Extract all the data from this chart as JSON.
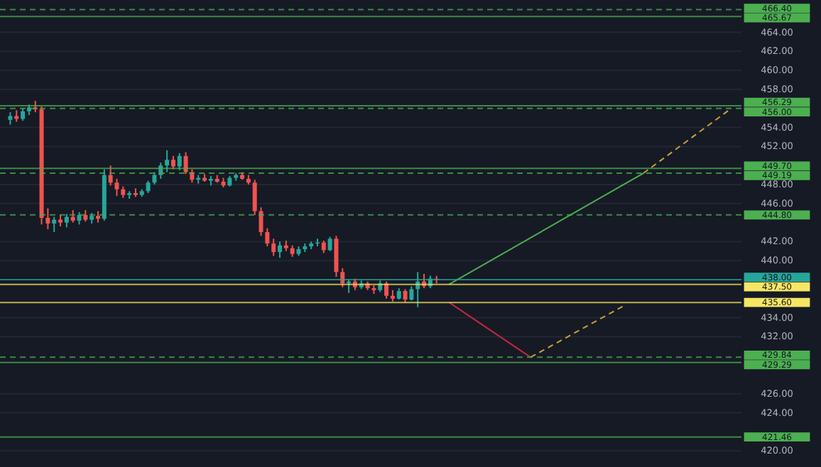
{
  "chart_data": {
    "type": "candlestick",
    "categories": [
      null,
      null,
      null,
      null,
      null,
      null,
      null,
      null,
      null,
      null,
      null,
      null,
      null,
      null,
      null,
      null,
      null,
      null,
      null,
      null,
      null,
      null,
      null,
      null,
      null,
      null,
      null,
      null,
      null,
      null,
      null,
      null,
      null,
      null,
      null,
      null,
      null,
      null,
      null,
      null,
      null,
      null,
      null,
      null,
      null,
      null,
      null,
      null,
      null,
      null,
      null,
      null,
      null,
      null,
      null,
      null,
      null,
      null,
      null,
      null,
      null,
      null,
      null,
      null,
      null,
      null,
      null,
      null,
      null,
      null,
      null,
      null,
      null,
      null,
      null,
      null,
      null,
      null,
      null,
      null,
      null,
      null,
      null,
      null,
      null,
      null,
      null,
      null,
      null,
      null,
      null,
      null,
      null,
      null,
      null,
      null,
      null,
      null,
      null,
      null,
      null,
      null,
      null,
      null,
      null,
      null,
      null,
      null,
      null,
      null,
      null,
      null,
      null,
      null,
      null,
      null
    ],
    "ohlc": [
      [
        454.8,
        455.6,
        454.3,
        455.2
      ],
      [
        455.2,
        455.8,
        454.6,
        454.9
      ],
      [
        454.9,
        456.0,
        454.7,
        455.7
      ],
      [
        455.7,
        456.4,
        455.3,
        456.1
      ],
      [
        456.1,
        456.8,
        455.6,
        455.9
      ],
      [
        455.9,
        456.2,
        443.8,
        444.5
      ],
      [
        444.5,
        445.5,
        443.3,
        443.9
      ],
      [
        443.9,
        444.6,
        443.0,
        444.3
      ],
      [
        444.3,
        444.8,
        443.6,
        444.0
      ],
      [
        444.0,
        444.9,
        443.5,
        444.6
      ],
      [
        444.6,
        445.3,
        444.0,
        444.2
      ],
      [
        444.2,
        445.1,
        443.8,
        444.8
      ],
      [
        444.8,
        445.3,
        444.1,
        444.3
      ],
      [
        444.3,
        445.0,
        443.9,
        444.7
      ],
      [
        444.7,
        445.2,
        444.0,
        444.4
      ],
      [
        444.4,
        449.6,
        444.2,
        449.0
      ],
      [
        449.0,
        450.0,
        447.9,
        448.2
      ],
      [
        448.2,
        448.6,
        446.8,
        447.5
      ],
      [
        447.5,
        447.8,
        446.6,
        446.9
      ],
      [
        446.9,
        447.3,
        446.5,
        447.1
      ],
      [
        447.1,
        447.6,
        446.7,
        446.9
      ],
      [
        446.9,
        447.5,
        446.7,
        447.3
      ],
      [
        447.3,
        448.4,
        447.1,
        448.2
      ],
      [
        448.2,
        449.3,
        448.0,
        449.0
      ],
      [
        449.0,
        450.3,
        448.6,
        450.0
      ],
      [
        450.0,
        451.6,
        449.3,
        450.6
      ],
      [
        450.6,
        451.0,
        449.6,
        449.9
      ],
      [
        449.9,
        451.3,
        449.5,
        451.0
      ],
      [
        451.0,
        451.4,
        449.1,
        449.3
      ],
      [
        449.3,
        449.6,
        448.2,
        448.5
      ],
      [
        448.5,
        449.0,
        448.1,
        448.7
      ],
      [
        448.7,
        449.1,
        448.3,
        448.4
      ],
      [
        448.4,
        448.9,
        447.9,
        448.6
      ],
      [
        448.6,
        449.0,
        448.2,
        448.3
      ],
      [
        448.3,
        448.7,
        447.7,
        447.9
      ],
      [
        447.9,
        448.9,
        447.8,
        448.7
      ],
      [
        448.7,
        449.2,
        448.4,
        449.0
      ],
      [
        449.0,
        449.3,
        448.5,
        448.6
      ],
      [
        448.6,
        449.0,
        448.0,
        448.2
      ],
      [
        448.2,
        448.5,
        444.8,
        445.2
      ],
      [
        445.2,
        445.6,
        442.6,
        443.0
      ],
      [
        443.0,
        443.4,
        441.5,
        441.8
      ],
      [
        441.8,
        442.3,
        440.5,
        440.9
      ],
      [
        440.9,
        442.0,
        440.3,
        441.6
      ],
      [
        441.6,
        442.1,
        441.0,
        441.3
      ],
      [
        441.3,
        441.6,
        440.4,
        440.7
      ],
      [
        440.7,
        441.5,
        440.5,
        441.2
      ],
      [
        441.2,
        441.8,
        440.9,
        441.5
      ],
      [
        441.5,
        442.0,
        441.2,
        441.8
      ],
      [
        441.8,
        442.3,
        441.5,
        441.9
      ],
      [
        441.9,
        442.1,
        440.8,
        441.1
      ],
      [
        441.1,
        442.5,
        441.0,
        442.3
      ],
      [
        442.3,
        442.6,
        438.3,
        438.8
      ],
      [
        438.8,
        439.2,
        437.2,
        437.6
      ],
      [
        437.6,
        438.0,
        436.6,
        437.8
      ],
      [
        437.8,
        438.1,
        436.9,
        437.2
      ],
      [
        437.2,
        437.9,
        437.0,
        437.6
      ],
      [
        437.6,
        437.8,
        436.9,
        437.1
      ],
      [
        437.1,
        437.4,
        436.5,
        436.9
      ],
      [
        436.9,
        437.9,
        436.7,
        437.6
      ],
      [
        437.6,
        437.8,
        436.0,
        436.3
      ],
      [
        436.3,
        436.9,
        435.7,
        436.0
      ],
      [
        436.0,
        437.1,
        435.9,
        436.8
      ],
      [
        436.8,
        437.0,
        435.6,
        435.9
      ],
      [
        435.9,
        437.3,
        435.8,
        437.0
      ],
      [
        437.0,
        438.8,
        435.1,
        437.8
      ],
      [
        437.8,
        438.6,
        437.1,
        437.3
      ],
      [
        437.3,
        438.4,
        437.1,
        438.1
      ],
      [
        438.1,
        438.4,
        437.6,
        438.0
      ],
      null,
      null,
      null,
      null,
      null,
      null,
      null,
      null,
      null,
      null,
      null,
      null,
      null,
      null,
      null,
      null,
      null,
      null,
      null,
      null,
      null,
      null,
      null,
      null,
      null,
      null,
      null,
      null,
      null,
      null,
      null,
      null,
      null,
      null,
      null,
      null,
      null,
      null,
      null,
      null,
      null,
      null,
      null,
      null,
      null,
      null,
      null
    ],
    "series": [
      {
        "type": "line",
        "color": "#4caf50",
        "line_style": "solid",
        "values": [
          null,
          null,
          null,
          null,
          null,
          null,
          null,
          null,
          null,
          null,
          null,
          null,
          null,
          null,
          null,
          null,
          null,
          null,
          null,
          null,
          null,
          null,
          null,
          null,
          null,
          null,
          null,
          null,
          null,
          null,
          null,
          null,
          null,
          null,
          null,
          null,
          null,
          null,
          null,
          null,
          null,
          null,
          null,
          null,
          null,
          null,
          null,
          null,
          null,
          null,
          null,
          null,
          null,
          null,
          null,
          null,
          null,
          null,
          null,
          null,
          null,
          null,
          null,
          null,
          null,
          null,
          null,
          null,
          null,
          null,
          437.5,
          null,
          null,
          null,
          null,
          null,
          null,
          null,
          null,
          null,
          null,
          null,
          null,
          null,
          null,
          null,
          null,
          null,
          null,
          null,
          null,
          null,
          null,
          null,
          null,
          null,
          null,
          null,
          null,
          null,
          null,
          449.19,
          null,
          null,
          null,
          null,
          null,
          null,
          null,
          null,
          null,
          null,
          null,
          null,
          null,
          null
        ]
      },
      {
        "type": "line",
        "color": "#c8a13a",
        "line_style": "dashed",
        "values": [
          null,
          null,
          null,
          null,
          null,
          null,
          null,
          null,
          null,
          null,
          null,
          null,
          null,
          null,
          null,
          null,
          null,
          null,
          null,
          null,
          null,
          null,
          null,
          null,
          null,
          null,
          null,
          null,
          null,
          null,
          null,
          null,
          null,
          null,
          null,
          null,
          null,
          null,
          null,
          null,
          null,
          null,
          null,
          null,
          null,
          null,
          null,
          null,
          null,
          null,
          null,
          null,
          null,
          null,
          null,
          null,
          null,
          null,
          null,
          null,
          null,
          null,
          null,
          null,
          null,
          null,
          null,
          null,
          null,
          null,
          null,
          null,
          null,
          null,
          null,
          null,
          null,
          null,
          null,
          null,
          null,
          null,
          null,
          null,
          null,
          null,
          null,
          null,
          null,
          null,
          null,
          null,
          null,
          null,
          null,
          null,
          null,
          null,
          null,
          null,
          null,
          449.19,
          null,
          null,
          null,
          null,
          null,
          null,
          null,
          null,
          null,
          null,
          null,
          null,
          null,
          456.0
        ]
      },
      {
        "type": "line",
        "color": "#c2283f",
        "line_style": "solid",
        "values": [
          null,
          null,
          null,
          null,
          null,
          null,
          null,
          null,
          null,
          null,
          null,
          null,
          null,
          null,
          null,
          null,
          null,
          null,
          null,
          null,
          null,
          null,
          null,
          null,
          null,
          null,
          null,
          null,
          null,
          null,
          null,
          null,
          null,
          null,
          null,
          null,
          null,
          null,
          null,
          null,
          null,
          null,
          null,
          null,
          null,
          null,
          null,
          null,
          null,
          null,
          null,
          null,
          null,
          null,
          null,
          null,
          null,
          null,
          null,
          null,
          null,
          null,
          null,
          null,
          null,
          null,
          null,
          null,
          null,
          null,
          435.6,
          null,
          null,
          null,
          null,
          null,
          null,
          null,
          null,
          null,
          null,
          null,
          null,
          429.84,
          null,
          null,
          null,
          null,
          null,
          null,
          null,
          null,
          null,
          null,
          null,
          null,
          null,
          null,
          null,
          null,
          null,
          null,
          null,
          null,
          null,
          null,
          null,
          null,
          null,
          null,
          null,
          null,
          null,
          null,
          null,
          null
        ]
      },
      {
        "type": "line",
        "color": "#c8a13a",
        "line_style": "dashed",
        "values": [
          null,
          null,
          null,
          null,
          null,
          null,
          null,
          null,
          null,
          null,
          null,
          null,
          null,
          null,
          null,
          null,
          null,
          null,
          null,
          null,
          null,
          null,
          null,
          null,
          null,
          null,
          null,
          null,
          null,
          null,
          null,
          null,
          null,
          null,
          null,
          null,
          null,
          null,
          null,
          null,
          null,
          null,
          null,
          null,
          null,
          null,
          null,
          null,
          null,
          null,
          null,
          null,
          null,
          null,
          null,
          null,
          null,
          null,
          null,
          null,
          null,
          null,
          null,
          null,
          null,
          null,
          null,
          null,
          null,
          null,
          null,
          null,
          null,
          null,
          null,
          null,
          null,
          null,
          null,
          null,
          null,
          null,
          null,
          429.84,
          null,
          null,
          null,
          null,
          null,
          null,
          null,
          null,
          null,
          null,
          null,
          null,
          null,
          null,
          435.3,
          null,
          null,
          null,
          null,
          null,
          null,
          null,
          null,
          null,
          null,
          null,
          null,
          null,
          null,
          null,
          null,
          null
        ]
      }
    ],
    "ref_lines": [
      {
        "axis": "y",
        "value": 466.4,
        "label": "466.40",
        "color": "#4caf50",
        "line_style": "dashed"
      },
      {
        "axis": "y",
        "value": 465.67,
        "label": "465.67",
        "color": "#4caf50",
        "line_style": "solid"
      },
      {
        "axis": "y",
        "value": 456.29,
        "label": "456.29",
        "color": "#4caf50",
        "line_style": "solid"
      },
      {
        "axis": "y",
        "value": 456.0,
        "label": "456.00",
        "color": "#4caf50",
        "line_style": "dashed"
      },
      {
        "axis": "y",
        "value": 449.7,
        "label": "449.70",
        "color": "#4caf50",
        "line_style": "solid"
      },
      {
        "axis": "y",
        "value": 449.19,
        "label": "449.19",
        "color": "#4caf50",
        "line_style": "dashed"
      },
      {
        "axis": "y",
        "value": 444.8,
        "label": "444.80",
        "color": "#4caf50",
        "line_style": "dashed"
      },
      {
        "axis": "y",
        "value": 438.0,
        "label": "438.00",
        "color": "#26a69a",
        "line_style": "solid"
      },
      {
        "axis": "y",
        "value": 437.5,
        "label": "437.50",
        "color": "#f5e663",
        "line_style": "solid"
      },
      {
        "axis": "y",
        "value": 435.6,
        "label": "435.60",
        "color": "#f5e663",
        "line_style": "solid"
      },
      {
        "axis": "y",
        "value": 429.84,
        "label": "429.84",
        "color": "#4caf50",
        "line_style": "dashed"
      },
      {
        "axis": "y",
        "value": 429.29,
        "label": "429.29",
        "color": "#4caf50",
        "line_style": "solid"
      },
      {
        "axis": "y",
        "value": 421.46,
        "label": "421.46",
        "color": "#4caf50",
        "line_style": "solid"
      }
    ],
    "ylim": [
      418.3,
      467.4
    ],
    "yticks": [
      {
        "value": 464,
        "label": "464.00"
      },
      {
        "value": 462,
        "label": "462.00"
      },
      {
        "value": 460,
        "label": "460.00"
      },
      {
        "value": 458,
        "label": "458.00"
      },
      {
        "value": 454,
        "label": "454.00"
      },
      {
        "value": 452,
        "label": "452.00"
      },
      {
        "value": 448,
        "label": "448.00"
      },
      {
        "value": 446,
        "label": "446.00"
      },
      {
        "value": 442,
        "label": "442.00"
      },
      {
        "value": 440,
        "label": "440.00"
      },
      {
        "value": 434,
        "label": "434.00"
      },
      {
        "value": 432,
        "label": "432.00"
      },
      {
        "value": 426,
        "label": "426.00"
      },
      {
        "value": 424,
        "label": "424.00"
      },
      {
        "value": 420,
        "label": "420.00"
      }
    ],
    "tick_labels": "y",
    "grid": "y"
  }
}
